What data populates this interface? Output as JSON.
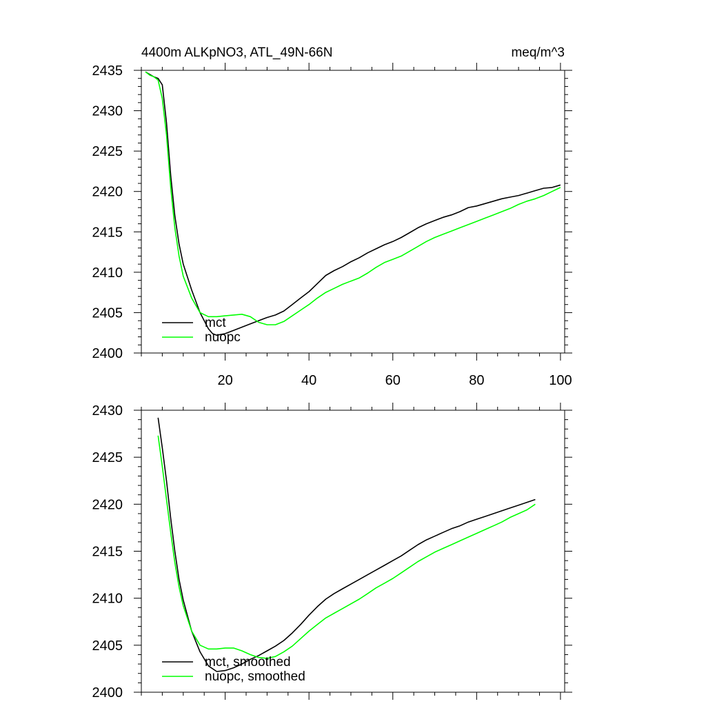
{
  "chart_data": [
    {
      "type": "line",
      "title": "4400m ALKpNO3, ATL_49N-66N",
      "units": "meq/m^3",
      "xlim": [
        0,
        101
      ],
      "ylim": [
        2400,
        2435
      ],
      "xticks": [
        "20",
        "40",
        "60",
        "80",
        "100"
      ],
      "yticks": [
        "2400",
        "2405",
        "2410",
        "2415",
        "2420",
        "2425",
        "2430",
        "2435"
      ],
      "legend_position": "bottom-left",
      "series": [
        {
          "name": "mct",
          "color": "#000000",
          "points": [
            [
              1,
              2434.8
            ],
            [
              2,
              2434.5
            ],
            [
              3,
              2434.2
            ],
            [
              4,
              2434.0
            ],
            [
              5,
              2433.2
            ],
            [
              6,
              2428.5
            ],
            [
              7,
              2422.0
            ],
            [
              8,
              2417.0
            ],
            [
              9,
              2413.5
            ],
            [
              10,
              2411.0
            ],
            [
              12,
              2407.8
            ],
            [
              14,
              2405.0
            ],
            [
              16,
              2403.0
            ],
            [
              17,
              2402.4
            ],
            [
              18,
              2402.2
            ],
            [
              20,
              2402.4
            ],
            [
              22,
              2402.8
            ],
            [
              24,
              2403.2
            ],
            [
              26,
              2403.6
            ],
            [
              28,
              2404.0
            ],
            [
              30,
              2404.4
            ],
            [
              32,
              2404.7
            ],
            [
              34,
              2405.2
            ],
            [
              36,
              2406.0
            ],
            [
              38,
              2406.8
            ],
            [
              40,
              2407.6
            ],
            [
              42,
              2408.6
            ],
            [
              44,
              2409.6
            ],
            [
              46,
              2410.2
            ],
            [
              48,
              2410.7
            ],
            [
              50,
              2411.3
            ],
            [
              52,
              2411.8
            ],
            [
              54,
              2412.4
            ],
            [
              56,
              2412.9
            ],
            [
              58,
              2413.4
            ],
            [
              60,
              2413.8
            ],
            [
              62,
              2414.3
            ],
            [
              64,
              2414.9
            ],
            [
              66,
              2415.5
            ],
            [
              68,
              2416.0
            ],
            [
              70,
              2416.4
            ],
            [
              72,
              2416.8
            ],
            [
              74,
              2417.1
            ],
            [
              76,
              2417.5
            ],
            [
              78,
              2418.0
            ],
            [
              80,
              2418.2
            ],
            [
              82,
              2418.5
            ],
            [
              84,
              2418.8
            ],
            [
              86,
              2419.1
            ],
            [
              88,
              2419.3
            ],
            [
              90,
              2419.5
            ],
            [
              92,
              2419.8
            ],
            [
              94,
              2420.1
            ],
            [
              96,
              2420.4
            ],
            [
              98,
              2420.5
            ],
            [
              100,
              2420.8
            ]
          ]
        },
        {
          "name": "nuopc",
          "color": "#00ff00",
          "points": [
            [
              1,
              2434.8
            ],
            [
              2,
              2434.4
            ],
            [
              3,
              2434.2
            ],
            [
              4,
              2433.8
            ],
            [
              5,
              2431.5
            ],
            [
              6,
              2427.0
            ],
            [
              7,
              2420.5
            ],
            [
              8,
              2415.5
            ],
            [
              9,
              2412.0
            ],
            [
              10,
              2409.5
            ],
            [
              12,
              2406.8
            ],
            [
              14,
              2405.0
            ],
            [
              16,
              2404.5
            ],
            [
              18,
              2404.5
            ],
            [
              20,
              2404.6
            ],
            [
              22,
              2404.7
            ],
            [
              24,
              2404.8
            ],
            [
              26,
              2404.5
            ],
            [
              28,
              2403.8
            ],
            [
              30,
              2403.5
            ],
            [
              32,
              2403.5
            ],
            [
              34,
              2403.9
            ],
            [
              36,
              2404.6
            ],
            [
              38,
              2405.3
            ],
            [
              40,
              2406.0
            ],
            [
              42,
              2406.8
            ],
            [
              44,
              2407.5
            ],
            [
              46,
              2408.0
            ],
            [
              48,
              2408.5
            ],
            [
              50,
              2408.9
            ],
            [
              52,
              2409.3
            ],
            [
              54,
              2409.9
            ],
            [
              56,
              2410.6
            ],
            [
              58,
              2411.2
            ],
            [
              60,
              2411.6
            ],
            [
              62,
              2412.0
            ],
            [
              64,
              2412.6
            ],
            [
              66,
              2413.2
            ],
            [
              68,
              2413.8
            ],
            [
              70,
              2414.3
            ],
            [
              72,
              2414.7
            ],
            [
              74,
              2415.1
            ],
            [
              76,
              2415.5
            ],
            [
              78,
              2415.9
            ],
            [
              80,
              2416.3
            ],
            [
              82,
              2416.7
            ],
            [
              84,
              2417.1
            ],
            [
              86,
              2417.5
            ],
            [
              88,
              2417.9
            ],
            [
              90,
              2418.4
            ],
            [
              92,
              2418.8
            ],
            [
              94,
              2419.1
            ],
            [
              96,
              2419.5
            ],
            [
              98,
              2420.0
            ],
            [
              100,
              2420.5
            ]
          ]
        }
      ]
    },
    {
      "type": "line",
      "xlim": [
        0,
        101
      ],
      "ylim": [
        2400,
        2430
      ],
      "xticks": [],
      "yticks": [
        "2400",
        "2405",
        "2410",
        "2415",
        "2420",
        "2425",
        "2430"
      ],
      "legend_position": "bottom-left",
      "series": [
        {
          "name": "mct, smoothed",
          "color": "#000000",
          "points": [
            [
              4,
              2429.2
            ],
            [
              5,
              2426.0
            ],
            [
              6,
              2422.5
            ],
            [
              7,
              2418.5
            ],
            [
              8,
              2415.0
            ],
            [
              9,
              2412.0
            ],
            [
              10,
              2409.8
            ],
            [
              12,
              2406.5
            ],
            [
              14,
              2404.3
            ],
            [
              16,
              2402.8
            ],
            [
              18,
              2402.2
            ],
            [
              20,
              2402.3
            ],
            [
              22,
              2402.6
            ],
            [
              24,
              2403.0
            ],
            [
              26,
              2403.5
            ],
            [
              28,
              2403.9
            ],
            [
              30,
              2404.4
            ],
            [
              32,
              2404.9
            ],
            [
              34,
              2405.5
            ],
            [
              36,
              2406.3
            ],
            [
              38,
              2407.2
            ],
            [
              40,
              2408.2
            ],
            [
              42,
              2409.1
            ],
            [
              44,
              2409.9
            ],
            [
              46,
              2410.5
            ],
            [
              48,
              2411.0
            ],
            [
              50,
              2411.5
            ],
            [
              52,
              2412.0
            ],
            [
              54,
              2412.5
            ],
            [
              56,
              2413.0
            ],
            [
              58,
              2413.5
            ],
            [
              60,
              2414.0
            ],
            [
              62,
              2414.5
            ],
            [
              64,
              2415.1
            ],
            [
              66,
              2415.7
            ],
            [
              68,
              2416.2
            ],
            [
              70,
              2416.6
            ],
            [
              72,
              2417.0
            ],
            [
              74,
              2417.4
            ],
            [
              76,
              2417.7
            ],
            [
              78,
              2418.1
            ],
            [
              80,
              2418.4
            ],
            [
              82,
              2418.7
            ],
            [
              84,
              2419.0
            ],
            [
              86,
              2419.3
            ],
            [
              88,
              2419.6
            ],
            [
              90,
              2419.9
            ],
            [
              92,
              2420.2
            ],
            [
              94,
              2420.5
            ]
          ]
        },
        {
          "name": "nuopc, smoothed",
          "color": "#00ff00",
          "points": [
            [
              4,
              2427.3
            ],
            [
              5,
              2424.0
            ],
            [
              6,
              2420.5
            ],
            [
              7,
              2417.0
            ],
            [
              8,
              2413.8
            ],
            [
              9,
              2411.2
            ],
            [
              10,
              2409.2
            ],
            [
              12,
              2406.5
            ],
            [
              14,
              2405.0
            ],
            [
              16,
              2404.6
            ],
            [
              18,
              2404.6
            ],
            [
              20,
              2404.7
            ],
            [
              22,
              2404.7
            ],
            [
              24,
              2404.4
            ],
            [
              26,
              2404.0
            ],
            [
              28,
              2403.7
            ],
            [
              30,
              2403.6
            ],
            [
              32,
              2403.8
            ],
            [
              34,
              2404.3
            ],
            [
              36,
              2404.9
            ],
            [
              38,
              2405.7
            ],
            [
              40,
              2406.5
            ],
            [
              42,
              2407.2
            ],
            [
              44,
              2407.9
            ],
            [
              46,
              2408.4
            ],
            [
              48,
              2408.9
            ],
            [
              50,
              2409.4
            ],
            [
              52,
              2409.9
            ],
            [
              54,
              2410.5
            ],
            [
              56,
              2411.1
            ],
            [
              58,
              2411.6
            ],
            [
              60,
              2412.1
            ],
            [
              62,
              2412.7
            ],
            [
              64,
              2413.3
            ],
            [
              66,
              2413.9
            ],
            [
              68,
              2414.4
            ],
            [
              70,
              2414.9
            ],
            [
              72,
              2415.3
            ],
            [
              74,
              2415.7
            ],
            [
              76,
              2416.1
            ],
            [
              78,
              2416.5
            ],
            [
              80,
              2416.9
            ],
            [
              82,
              2417.3
            ],
            [
              84,
              2417.7
            ],
            [
              86,
              2418.1
            ],
            [
              88,
              2418.6
            ],
            [
              90,
              2419.0
            ],
            [
              92,
              2419.4
            ],
            [
              94,
              2420.0
            ]
          ]
        }
      ]
    }
  ]
}
